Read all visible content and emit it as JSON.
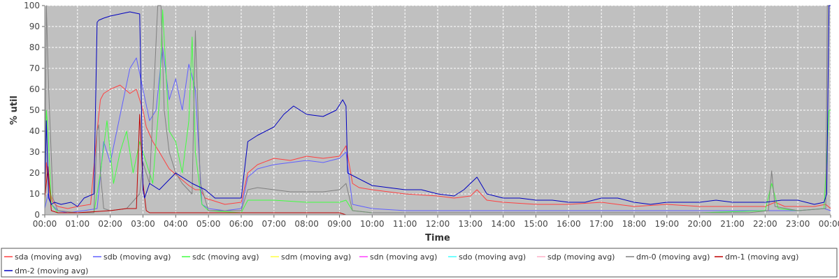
{
  "chart_data": {
    "type": "line",
    "title": "",
    "xlabel": "Time",
    "ylabel": "% util",
    "ylim": [
      0,
      100
    ],
    "yticks": [
      0,
      10,
      20,
      30,
      40,
      50,
      60,
      70,
      80,
      90,
      100
    ],
    "xlim": [
      0,
      24
    ],
    "xticks": [
      "00:00",
      "01:00",
      "02:00",
      "03:00",
      "04:00",
      "05:00",
      "06:00",
      "07:00",
      "08:00",
      "09:00",
      "10:00",
      "11:00",
      "12:00",
      "13:00",
      "14:00",
      "15:00",
      "16:00",
      "17:00",
      "18:00",
      "19:00",
      "20:00",
      "21:00",
      "22:00",
      "23:00",
      "00:00"
    ],
    "grid": true,
    "legend_position": "bottom",
    "background": "#c0c0c0",
    "series": [
      {
        "name": "sda (moving avg)",
        "color": "#ff4040",
        "x": [
          0,
          0.05,
          0.15,
          0.25,
          0.4,
          0.7,
          1.0,
          1.4,
          1.6,
          1.7,
          1.8,
          2.0,
          2.3,
          2.6,
          2.8,
          2.9,
          3.0,
          3.1,
          3.3,
          3.5,
          3.8,
          4.1,
          4.4,
          4.6,
          4.75,
          4.9,
          5.5,
          6.0,
          6.2,
          6.5,
          7.0,
          7.5,
          8.0,
          8.5,
          9.0,
          9.2,
          9.4,
          9.6,
          10,
          11,
          12,
          12.5,
          13,
          13.2,
          13.5,
          14,
          15,
          16,
          17,
          18,
          19,
          20,
          21,
          22,
          22.3,
          22.6,
          23,
          23.5,
          23.85,
          24
        ],
        "y": [
          5,
          25,
          12,
          6,
          4,
          3,
          4,
          5,
          40,
          55,
          58,
          60,
          62,
          58,
          60,
          55,
          50,
          42,
          35,
          30,
          22,
          18,
          14,
          12,
          12,
          8,
          5,
          6,
          20,
          24,
          27,
          26,
          28,
          27,
          28,
          33,
          15,
          13,
          12,
          10,
          9,
          8,
          9,
          12,
          7,
          6,
          5,
          5,
          6,
          4,
          5,
          4,
          4,
          4,
          6,
          4,
          4,
          4,
          5,
          3
        ]
      },
      {
        "name": "sdb (moving avg)",
        "color": "#6060ff",
        "x": [
          0,
          0.1,
          0.2,
          0.4,
          0.7,
          1.2,
          1.6,
          1.8,
          2.0,
          2.2,
          2.4,
          2.6,
          2.8,
          3.0,
          3.2,
          3.4,
          3.6,
          3.8,
          4.0,
          4.2,
          4.4,
          4.6,
          4.8,
          5.0,
          5.5,
          6.0,
          6.2,
          6.5,
          7.0,
          7.5,
          8.0,
          8.5,
          9.0,
          9.2,
          9.4,
          10,
          11,
          12,
          13,
          14,
          15,
          16,
          17,
          18,
          19,
          20,
          21,
          22,
          23,
          23.8,
          24
        ],
        "y": [
          3,
          10,
          5,
          2,
          1,
          2,
          3,
          35,
          25,
          40,
          55,
          70,
          75,
          60,
          45,
          50,
          80,
          55,
          65,
          50,
          72,
          60,
          5,
          3,
          2,
          3,
          18,
          22,
          24,
          25,
          26,
          25,
          27,
          30,
          5,
          3,
          2,
          2,
          2,
          2,
          2,
          2,
          2,
          2,
          2,
          2,
          2,
          2,
          2,
          3,
          2
        ]
      },
      {
        "name": "sdc (moving avg)",
        "color": "#40ff40",
        "x": [
          0,
          0.05,
          0.1,
          0.2,
          0.4,
          0.8,
          1.5,
          1.7,
          1.9,
          2.1,
          2.3,
          2.5,
          2.7,
          2.9,
          3.1,
          3.3,
          3.5,
          3.6,
          3.8,
          4.0,
          4.2,
          4.4,
          4.5,
          4.6,
          4.8,
          5.0,
          6.0,
          6.2,
          7.0,
          8.0,
          9.0,
          9.2,
          9.4,
          10,
          12,
          14,
          16,
          18,
          20,
          22,
          22.2,
          22.4,
          23,
          23.8,
          23.95,
          24
        ],
        "y": [
          3,
          50,
          40,
          5,
          1,
          1,
          1,
          20,
          45,
          15,
          30,
          40,
          20,
          35,
          25,
          15,
          55,
          98,
          40,
          35,
          20,
          45,
          85,
          30,
          5,
          2,
          1,
          7,
          7,
          6,
          6,
          7,
          2,
          1,
          1,
          1,
          1,
          1,
          1,
          2,
          15,
          3,
          2,
          3,
          50,
          50
        ]
      },
      {
        "name": "sdm (moving avg)",
        "color": "#ffff40",
        "x": [
          0,
          24
        ],
        "y": [
          0,
          0
        ]
      },
      {
        "name": "sdn (moving avg)",
        "color": "#ff40ff",
        "x": [
          0,
          24
        ],
        "y": [
          0,
          0
        ]
      },
      {
        "name": "sdo (moving avg)",
        "color": "#40ffff",
        "x": [
          0,
          24
        ],
        "y": [
          0,
          0
        ]
      },
      {
        "name": "sdp (moving avg)",
        "color": "#ffb0c8",
        "x": [
          0,
          24
        ],
        "y": [
          0,
          0
        ]
      },
      {
        "name": "dm-0 (moving avg)",
        "color": "#808080",
        "x": [
          0,
          0.05,
          0.12,
          0.25,
          0.4,
          1.0,
          1.5,
          1.6,
          1.65,
          1.7,
          1.8,
          2.0,
          2.5,
          2.9,
          3.0,
          3.2,
          3.45,
          3.55,
          3.65,
          3.8,
          4.0,
          4.2,
          4.5,
          4.6,
          4.75,
          5.0,
          6.0,
          6.2,
          6.5,
          7.0,
          7.5,
          8.0,
          8.5,
          9.0,
          9.2,
          9.4,
          10,
          12,
          14,
          16,
          18,
          20,
          21.5,
          22.1,
          22.2,
          22.3,
          23,
          23.85,
          23.9,
          24
        ],
        "y": [
          5,
          100,
          60,
          8,
          2,
          1,
          1,
          40,
          43,
          20,
          3,
          2,
          3,
          10,
          25,
          15,
          100,
          100,
          50,
          30,
          20,
          15,
          10,
          88,
          15,
          2,
          2,
          12,
          13,
          12,
          11,
          11,
          11,
          12,
          15,
          2,
          1,
          1,
          1,
          1,
          1,
          1,
          1,
          2,
          21,
          4,
          2,
          3,
          100,
          100
        ]
      },
      {
        "name": "dm-1 (moving avg)",
        "color": "#c00000",
        "x": [
          0,
          0.1,
          0.2,
          0.4,
          1.0,
          2.0,
          2.5,
          2.8,
          2.9,
          3.0,
          3.1,
          3.2,
          4.0,
          5.0,
          6.0,
          9.0,
          9.2,
          24
        ],
        "y": [
          8,
          23,
          2,
          1,
          1,
          2,
          3,
          3,
          48,
          15,
          2,
          1,
          1,
          1,
          1,
          1,
          0,
          0
        ]
      },
      {
        "name": "dm-2 (moving avg)",
        "color": "#0000c0",
        "x": [
          0,
          0.05,
          0.12,
          0.2,
          0.3,
          0.5,
          0.8,
          1.0,
          1.2,
          1.5,
          1.6,
          1.65,
          1.8,
          2.0,
          2.3,
          2.6,
          2.9,
          3.0,
          3.05,
          3.2,
          3.5,
          4.0,
          4.5,
          4.9,
          5.2,
          5.5,
          5.8,
          6.0,
          6.2,
          6.5,
          7.0,
          7.3,
          7.6,
          8.0,
          8.5,
          8.9,
          9.1,
          9.2,
          9.25,
          9.5,
          10.0,
          10.5,
          11.0,
          11.5,
          12.0,
          12.5,
          12.8,
          13.0,
          13.2,
          13.5,
          14.0,
          14.5,
          15.0,
          15.5,
          16.0,
          16.5,
          17.0,
          17.5,
          18.0,
          18.5,
          19.0,
          19.5,
          20.0,
          20.5,
          21.0,
          21.5,
          22.0,
          22.5,
          23.0,
          23.5,
          23.8,
          23.88,
          23.95,
          24
        ],
        "y": [
          10,
          45,
          8,
          5,
          6,
          5,
          6,
          4,
          8,
          10,
          92,
          93,
          94,
          95,
          96,
          97,
          96,
          12,
          8,
          15,
          12,
          20,
          15,
          12,
          8,
          8,
          8,
          8,
          35,
          38,
          42,
          48,
          52,
          48,
          47,
          50,
          55,
          52,
          20,
          18,
          14,
          13,
          12,
          12,
          10,
          9,
          12,
          15,
          18,
          10,
          8,
          8,
          7,
          7,
          6,
          6,
          8,
          8,
          6,
          5,
          6,
          6,
          6,
          7,
          6,
          6,
          6,
          7,
          7,
          5,
          6,
          10,
          100,
          100
        ]
      }
    ]
  }
}
